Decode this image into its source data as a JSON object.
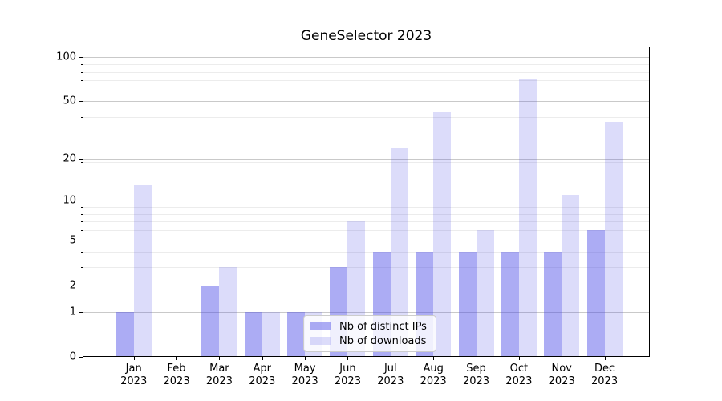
{
  "chart_data": {
    "type": "bar",
    "title": "GeneSelector 2023",
    "categories": [
      "Jan 2023",
      "Feb 2023",
      "Mar 2023",
      "Apr 2023",
      "May 2023",
      "Jun 2023",
      "Jul 2023",
      "Aug 2023",
      "Sep 2023",
      "Oct 2023",
      "Nov 2023",
      "Dec 2023"
    ],
    "series": [
      {
        "name": "Nb of distinct IPs",
        "values": [
          1,
          0,
          2,
          1,
          1,
          3,
          4,
          4,
          4,
          4,
          4,
          6
        ],
        "color": "rgba(70,70,230,0.45)"
      },
      {
        "name": "Nb of downloads",
        "values": [
          13,
          0,
          3,
          1,
          1,
          7,
          24,
          42,
          6,
          70,
          11,
          36
        ],
        "color": "rgba(70,70,230,0.19)"
      }
    ],
    "y_axis": {
      "scale": "log(value+1)",
      "tick_labels": [
        0,
        1,
        2,
        5,
        10,
        20,
        50,
        100
      ],
      "minor_lines_at_value_plus_1": [
        4,
        5,
        7,
        8,
        9,
        10,
        20,
        30,
        40,
        50,
        60,
        70,
        80,
        90,
        100
      ],
      "range_max": 117
    },
    "xlabel": "",
    "ylabel": "",
    "grid": "on",
    "legend_position": "lower center",
    "colors": {
      "bar_base": "#4646e6",
      "grid_major": "#c9c9c9",
      "grid_minor": "#ececec",
      "axis": "#000000",
      "legend_border": "#cccccc"
    }
  }
}
